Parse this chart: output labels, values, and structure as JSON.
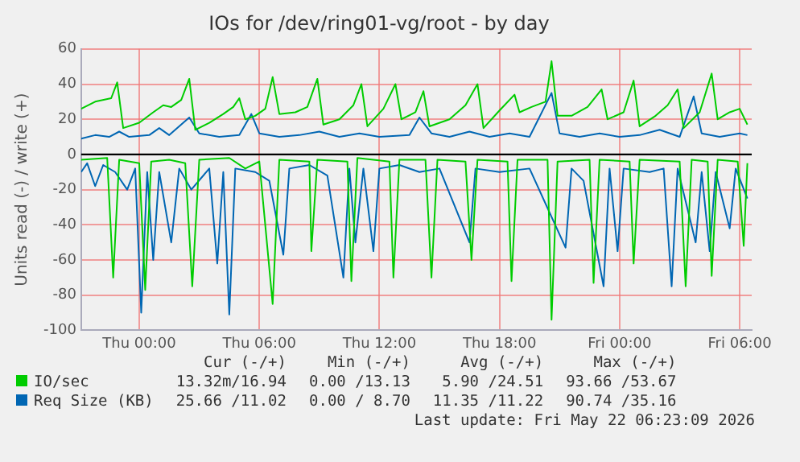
{
  "chart_data": {
    "type": "line",
    "title": "IOs for /dev/ring01-vg/root - by day",
    "ylabel": "Units read (-) / write (+)",
    "xlim": [
      "2026-05-20T21:06",
      "2026-05-22T06:36"
    ],
    "xticks": [
      {
        "value": "2026-05-21T00:00",
        "label": "Thu 00:00"
      },
      {
        "value": "2026-05-21T06:00",
        "label": "Thu 06:00"
      },
      {
        "value": "2026-05-21T12:00",
        "label": "Thu 12:00"
      },
      {
        "value": "2026-05-21T18:00",
        "label": "Thu 18:00"
      },
      {
        "value": "2026-05-22T00:00",
        "label": "Fri 00:00"
      },
      {
        "value": "2026-05-22T06:00",
        "label": "Fri 06:00"
      }
    ],
    "ylim": [
      -100,
      60
    ],
    "yticks": [
      -100,
      -80,
      -60,
      -40,
      -20,
      0,
      20,
      40,
      60
    ],
    "grid": true,
    "legend": "bottom",
    "marker": "none",
    "line_style": "solid",
    "ref_lines": [
      {
        "axis": "y",
        "value": 0,
        "label": null,
        "color": "#000000"
      }
    ],
    "series": [
      {
        "color": "#00cc00",
        "x": [
          "2026-05-20T21:06",
          "2026-05-20T22:24",
          "2026-05-20T22:42",
          "2026-05-20T23:00",
          "2026-05-21T00:00",
          "2026-05-21T00:18",
          "2026-05-21T00:36",
          "2026-05-21T01:30",
          "2026-05-21T02:18",
          "2026-05-21T02:39",
          "2026-05-21T03:00",
          "2026-05-21T04:30",
          "2026-05-21T05:18",
          "2026-05-21T06:00",
          "2026-05-21T06:40",
          "2026-05-21T07:00",
          "2026-05-21T08:30",
          "2026-05-21T08:36",
          "2026-05-21T08:54",
          "2026-05-21T10:24",
          "2026-05-21T10:36",
          "2026-05-21T10:54",
          "2026-05-21T12:30",
          "2026-05-21T12:42",
          "2026-05-21T13:00",
          "2026-05-21T14:18",
          "2026-05-21T14:36",
          "2026-05-21T14:54",
          "2026-05-21T16:18",
          "2026-05-21T16:36",
          "2026-05-21T16:54",
          "2026-05-21T18:24",
          "2026-05-21T18:36",
          "2026-05-21T18:54",
          "2026-05-21T20:24",
          "2026-05-21T20:36",
          "2026-05-21T20:54",
          "2026-05-21T22:30",
          "2026-05-21T22:42",
          "2026-05-21T23:00",
          "2026-05-22T00:30",
          "2026-05-22T00:42",
          "2026-05-22T01:00",
          "2026-05-22T03:00",
          "2026-05-22T03:18",
          "2026-05-22T03:36",
          "2026-05-22T04:24",
          "2026-05-22T04:36",
          "2026-05-22T04:54",
          "2026-05-22T05:54",
          "2026-05-22T06:12",
          "2026-05-22T06:23"
        ],
        "values": [
          -3,
          -2,
          -70,
          -3,
          -5,
          -77,
          -4,
          -3,
          -5,
          -75,
          -3,
          -2,
          -8,
          -4,
          -85,
          -3,
          -4,
          -55,
          -3,
          -4,
          -72,
          -2,
          -4,
          -70,
          -3,
          -3,
          -70,
          -3,
          -4,
          -60,
          -3,
          -4,
          -72,
          -3,
          -3,
          -94,
          -4,
          -3,
          -73,
          -3,
          -4,
          -62,
          -3,
          -4,
          -75,
          -3,
          -4,
          -69,
          -3,
          -4,
          -52,
          -5
        ]
      },
      {
        "name": "IO/sec",
        "color": "#00cc00",
        "x": [
          "2026-05-20T21:06",
          "2026-05-20T21:48",
          "2026-05-20T22:36",
          "2026-05-20T22:54",
          "2026-05-20T23:12",
          "2026-05-21T00:00",
          "2026-05-21T00:42",
          "2026-05-21T01:12",
          "2026-05-21T01:36",
          "2026-05-21T02:06",
          "2026-05-21T02:30",
          "2026-05-21T02:48",
          "2026-05-21T03:30",
          "2026-05-21T04:12",
          "2026-05-21T04:42",
          "2026-05-21T05:00",
          "2026-05-21T05:18",
          "2026-05-21T05:48",
          "2026-05-21T06:18",
          "2026-05-21T06:40",
          "2026-05-21T07:00",
          "2026-05-21T07:48",
          "2026-05-21T08:24",
          "2026-05-21T08:54",
          "2026-05-21T09:12",
          "2026-05-21T10:00",
          "2026-05-21T10:42",
          "2026-05-21T11:06",
          "2026-05-21T11:24",
          "2026-05-21T12:12",
          "2026-05-21T12:48",
          "2026-05-21T13:06",
          "2026-05-21T13:48",
          "2026-05-21T14:12",
          "2026-05-21T14:30",
          "2026-05-21T15:30",
          "2026-05-21T16:18",
          "2026-05-21T16:54",
          "2026-05-21T17:12",
          "2026-05-21T18:00",
          "2026-05-21T18:45",
          "2026-05-21T19:00",
          "2026-05-21T19:36",
          "2026-05-21T20:18",
          "2026-05-21T20:36",
          "2026-05-21T20:54",
          "2026-05-21T21:36",
          "2026-05-21T22:24",
          "2026-05-21T23:06",
          "2026-05-21T23:24",
          "2026-05-22T00:12",
          "2026-05-22T00:42",
          "2026-05-22T01:00",
          "2026-05-22T01:48",
          "2026-05-22T02:24",
          "2026-05-22T02:54",
          "2026-05-22T03:12",
          "2026-05-22T04:00",
          "2026-05-22T04:36",
          "2026-05-22T04:54",
          "2026-05-22T05:30",
          "2026-05-22T06:00",
          "2026-05-22T06:23"
        ],
        "values": [
          26,
          30,
          32,
          41,
          15,
          18,
          24,
          28,
          27,
          31,
          43,
          14,
          18,
          23,
          27,
          32,
          20,
          22,
          26,
          44,
          23,
          24,
          27,
          43,
          17,
          20,
          28,
          40,
          16,
          26,
          40,
          20,
          24,
          36,
          16,
          20,
          28,
          40,
          15,
          25,
          34,
          24,
          27,
          30,
          53,
          22,
          22,
          27,
          37,
          20,
          24,
          42,
          16,
          22,
          28,
          37,
          15,
          24,
          46,
          20,
          24,
          26,
          17
        ]
      },
      {
        "color": "#0066b3",
        "x": [
          "2026-05-20T21:06",
          "2026-05-20T21:24",
          "2026-05-20T21:48",
          "2026-05-20T22:12",
          "2026-05-20T22:48",
          "2026-05-20T23:24",
          "2026-05-20T23:48",
          "2026-05-21T00:06",
          "2026-05-21T00:24",
          "2026-05-21T00:42",
          "2026-05-21T01:00",
          "2026-05-21T01:36",
          "2026-05-21T02:00",
          "2026-05-21T02:36",
          "2026-05-21T03:30",
          "2026-05-21T03:54",
          "2026-05-21T04:12",
          "2026-05-21T04:30",
          "2026-05-21T04:48",
          "2026-05-21T05:48",
          "2026-05-21T06:30",
          "2026-05-21T07:12",
          "2026-05-21T07:30",
          "2026-05-21T08:30",
          "2026-05-21T09:24",
          "2026-05-21T10:12",
          "2026-05-21T10:30",
          "2026-05-21T10:48",
          "2026-05-21T11:12",
          "2026-05-21T11:42",
          "2026-05-21T12:00",
          "2026-05-21T13:00",
          "2026-05-21T14:00",
          "2026-05-21T15:00",
          "2026-05-21T16:30",
          "2026-05-21T16:48",
          "2026-05-21T18:00",
          "2026-05-21T19:30",
          "2026-05-21T21:18",
          "2026-05-21T21:36",
          "2026-05-21T22:12",
          "2026-05-21T23:12",
          "2026-05-21T23:30",
          "2026-05-21T23:54",
          "2026-05-22T00:12",
          "2026-05-22T01:30",
          "2026-05-22T02:12",
          "2026-05-22T02:36",
          "2026-05-22T02:54",
          "2026-05-22T03:48",
          "2026-05-22T04:06",
          "2026-05-22T04:30",
          "2026-05-22T04:48",
          "2026-05-22T05:30",
          "2026-05-22T05:48",
          "2026-05-22T06:23"
        ],
        "values": [
          -10,
          -5,
          -18,
          -6,
          -10,
          -20,
          -8,
          -90,
          -10,
          -60,
          -10,
          -50,
          -8,
          -20,
          -8,
          -62,
          -10,
          -91,
          -8,
          -10,
          -15,
          -57,
          -8,
          -6,
          -12,
          -70,
          -8,
          -50,
          -8,
          -55,
          -8,
          -6,
          -10,
          -8,
          -50,
          -8,
          -10,
          -8,
          -53,
          -8,
          -15,
          -75,
          -8,
          -55,
          -8,
          -10,
          -8,
          -75,
          -8,
          -50,
          -10,
          -55,
          -10,
          -42,
          -8,
          -25
        ]
      },
      {
        "name": "Req Size (KB)",
        "color": "#0066b3",
        "x": [
          "2026-05-20T21:06",
          "2026-05-20T21:48",
          "2026-05-20T22:30",
          "2026-05-20T23:00",
          "2026-05-20T23:30",
          "2026-05-21T00:30",
          "2026-05-21T01:00",
          "2026-05-21T01:30",
          "2026-05-21T02:30",
          "2026-05-21T03:00",
          "2026-05-21T04:00",
          "2026-05-21T05:00",
          "2026-05-21T05:36",
          "2026-05-21T06:00",
          "2026-05-21T07:00",
          "2026-05-21T08:00",
          "2026-05-21T09:00",
          "2026-05-21T10:00",
          "2026-05-21T11:00",
          "2026-05-21T12:00",
          "2026-05-21T13:30",
          "2026-05-21T14:00",
          "2026-05-21T14:36",
          "2026-05-21T15:30",
          "2026-05-21T16:30",
          "2026-05-21T17:30",
          "2026-05-21T18:30",
          "2026-05-21T19:30",
          "2026-05-21T20:36",
          "2026-05-21T21:00",
          "2026-05-21T22:00",
          "2026-05-21T23:00",
          "2026-05-22T00:00",
          "2026-05-22T01:00",
          "2026-05-22T02:00",
          "2026-05-22T03:00",
          "2026-05-22T03:42",
          "2026-05-22T04:06",
          "2026-05-22T05:00",
          "2026-05-22T06:00",
          "2026-05-22T06:23"
        ],
        "values": [
          9,
          11,
          10,
          13,
          10,
          11,
          15,
          11,
          21,
          12,
          10,
          11,
          23,
          12,
          10,
          11,
          13,
          10,
          12,
          10,
          11,
          21,
          12,
          10,
          13,
          10,
          12,
          10,
          35,
          12,
          10,
          12,
          10,
          11,
          14,
          10,
          33,
          12,
          10,
          12,
          11
        ]
      }
    ],
    "annotations": [
      "Cur (-/+)",
      "Min (-/+)",
      "Avg (-/+)",
      "Max (-/+)",
      "13.32m/16.94",
      "0.00 /13.13",
      "5.90 /24.51",
      "93.66 /53.67",
      "25.66 /11.02",
      "0.00 / 8.70",
      "11.35 /11.22",
      "90.74 /35.16",
      "Last update: Fri May 22 06:23:09 2026"
    ]
  }
}
